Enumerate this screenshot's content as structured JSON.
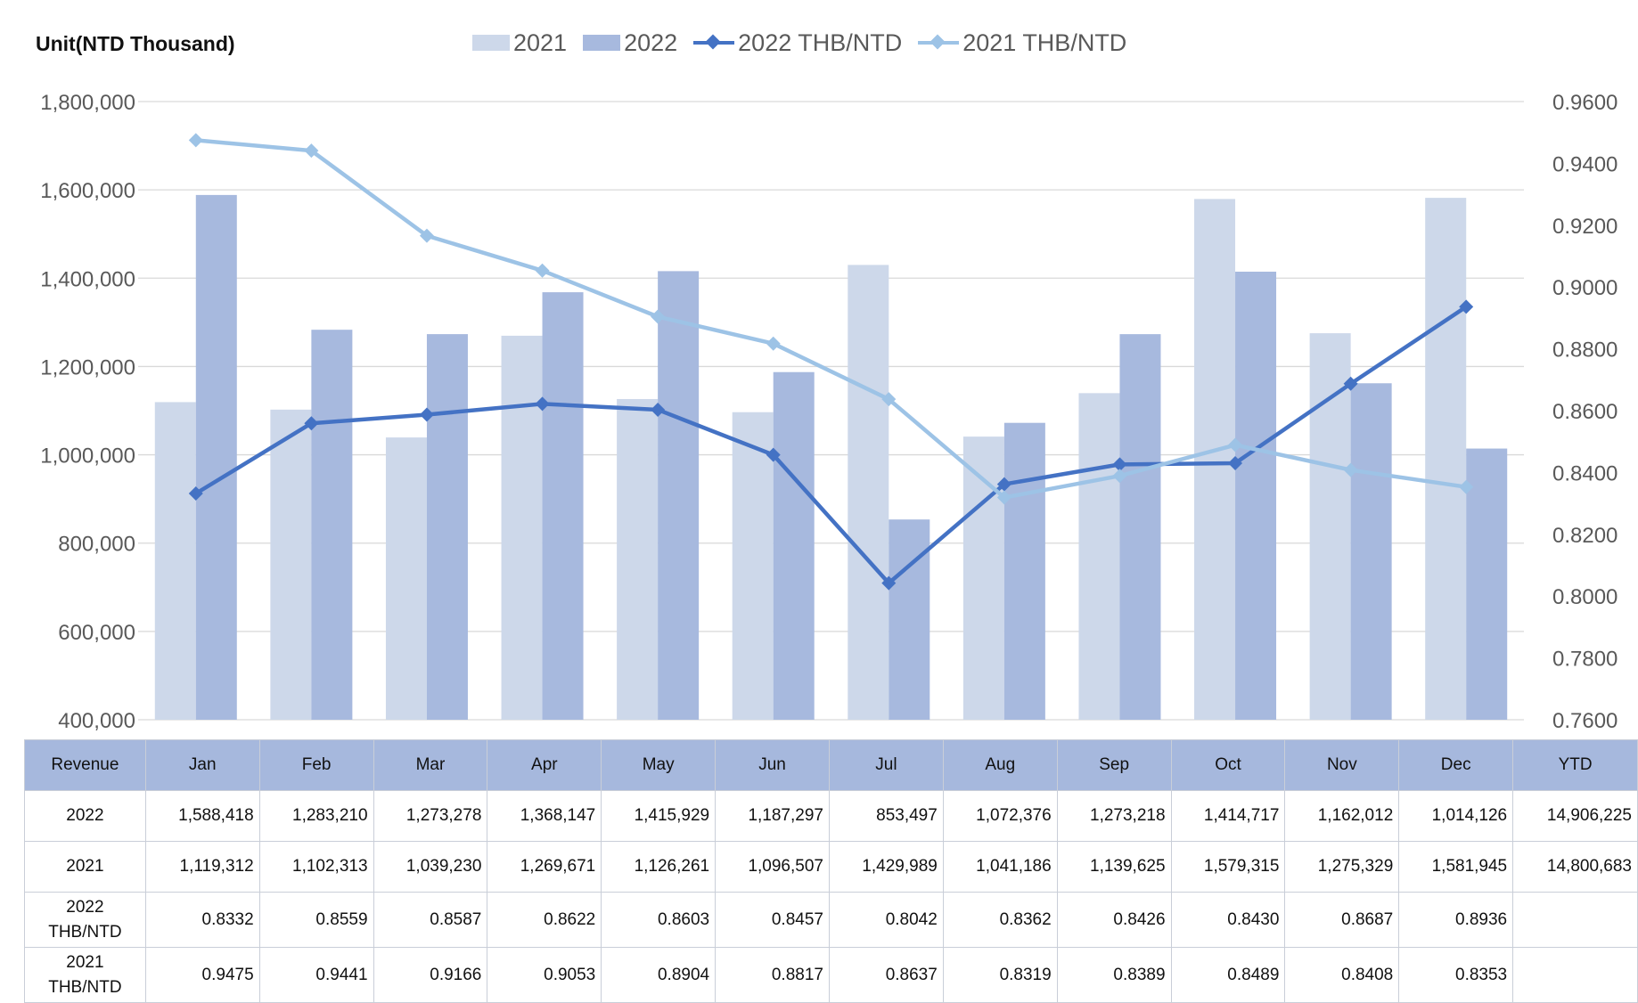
{
  "unit_label": "Unit(NTD  Thousand)",
  "legend": [
    {
      "label": "2021",
      "kind": "bar",
      "color": "#cdd8ea"
    },
    {
      "label": "2022",
      "kind": "bar",
      "color": "#a7b9de"
    },
    {
      "label": "2022 THB/NTD",
      "kind": "line",
      "color": "#4472c4"
    },
    {
      "label": "2021 THB/NTD",
      "kind": "line",
      "color": "#9dc3e6"
    }
  ],
  "chart_data": {
    "type": "bar",
    "categories": [
      "Jan",
      "Feb",
      "Mar",
      "Apr",
      "May",
      "Jun",
      "Jul",
      "Aug",
      "Sep",
      "Oct",
      "Nov",
      "Dec"
    ],
    "series": [
      {
        "name": "2021",
        "kind": "bar",
        "axis": "left",
        "color": "#cdd8ea",
        "values": [
          1119312,
          1102313,
          1039230,
          1269671,
          1126261,
          1096507,
          1429989,
          1041186,
          1139625,
          1579315,
          1275329,
          1581945
        ]
      },
      {
        "name": "2022",
        "kind": "bar",
        "axis": "left",
        "color": "#a7b9de",
        "values": [
          1588418,
          1283210,
          1273278,
          1368147,
          1415929,
          1187297,
          853497,
          1072376,
          1273218,
          1414717,
          1162012,
          1014126
        ]
      },
      {
        "name": "2022 THB/NTD",
        "kind": "line",
        "axis": "right",
        "color": "#4472c4",
        "values": [
          0.8332,
          0.8559,
          0.8587,
          0.8622,
          0.8603,
          0.8457,
          0.8042,
          0.8362,
          0.8426,
          0.843,
          0.8687,
          0.8936
        ]
      },
      {
        "name": "2021 THB/NTD",
        "kind": "line",
        "axis": "right",
        "color": "#9dc3e6",
        "values": [
          0.9475,
          0.9441,
          0.9166,
          0.9053,
          0.8904,
          0.8817,
          0.8637,
          0.8319,
          0.8389,
          0.8489,
          0.8408,
          0.8353
        ]
      }
    ],
    "y_left": {
      "range": [
        400000,
        1800000
      ],
      "ticks": [
        "400,000",
        "600,000",
        "800,000",
        "1,000,000",
        "1,200,000",
        "1,400,000",
        "1,600,000",
        "1,800,000"
      ]
    },
    "y_right": {
      "range": [
        0.76,
        0.96
      ],
      "ticks": [
        "0.7600",
        "0.7800",
        "0.8000",
        "0.8200",
        "0.8400",
        "0.8600",
        "0.8800",
        "0.9000",
        "0.9200",
        "0.9400",
        "0.9600"
      ]
    },
    "grid": true,
    "legend_position": "top-center"
  },
  "table": {
    "header": [
      "Revenue",
      "Jan",
      "Feb",
      "Mar",
      "Apr",
      "May",
      "Jun",
      "Jul",
      "Aug",
      "Sep",
      "Oct",
      "Nov",
      "Dec",
      "YTD"
    ],
    "rows": [
      {
        "label": "2022",
        "cells": [
          "1,588,418",
          "1,283,210",
          "1,273,278",
          "1,368,147",
          "1,415,929",
          "1,187,297",
          "853,497",
          "1,072,376",
          "1,273,218",
          "1,414,717",
          "1,162,012",
          "1,014,126",
          "14,906,225"
        ]
      },
      {
        "label": "2021",
        "cells": [
          "1,119,312",
          "1,102,313",
          "1,039,230",
          "1,269,671",
          "1,126,261",
          "1,096,507",
          "1,429,989",
          "1,041,186",
          "1,139,625",
          "1,579,315",
          "1,275,329",
          "1,581,945",
          "14,800,683"
        ]
      },
      {
        "label": "2022 THB/NTD",
        "cells": [
          "0.8332",
          "0.8559",
          "0.8587",
          "0.8622",
          "0.8603",
          "0.8457",
          "0.8042",
          "0.8362",
          "0.8426",
          "0.8430",
          "0.8687",
          "0.8936",
          ""
        ]
      },
      {
        "label": "2021 THB/NTD",
        "cells": [
          "0.9475",
          "0.9441",
          "0.9166",
          "0.9053",
          "0.8904",
          "0.8817",
          "0.8637",
          "0.8319",
          "0.8389",
          "0.8489",
          "0.8408",
          "0.8353",
          ""
        ]
      }
    ]
  }
}
